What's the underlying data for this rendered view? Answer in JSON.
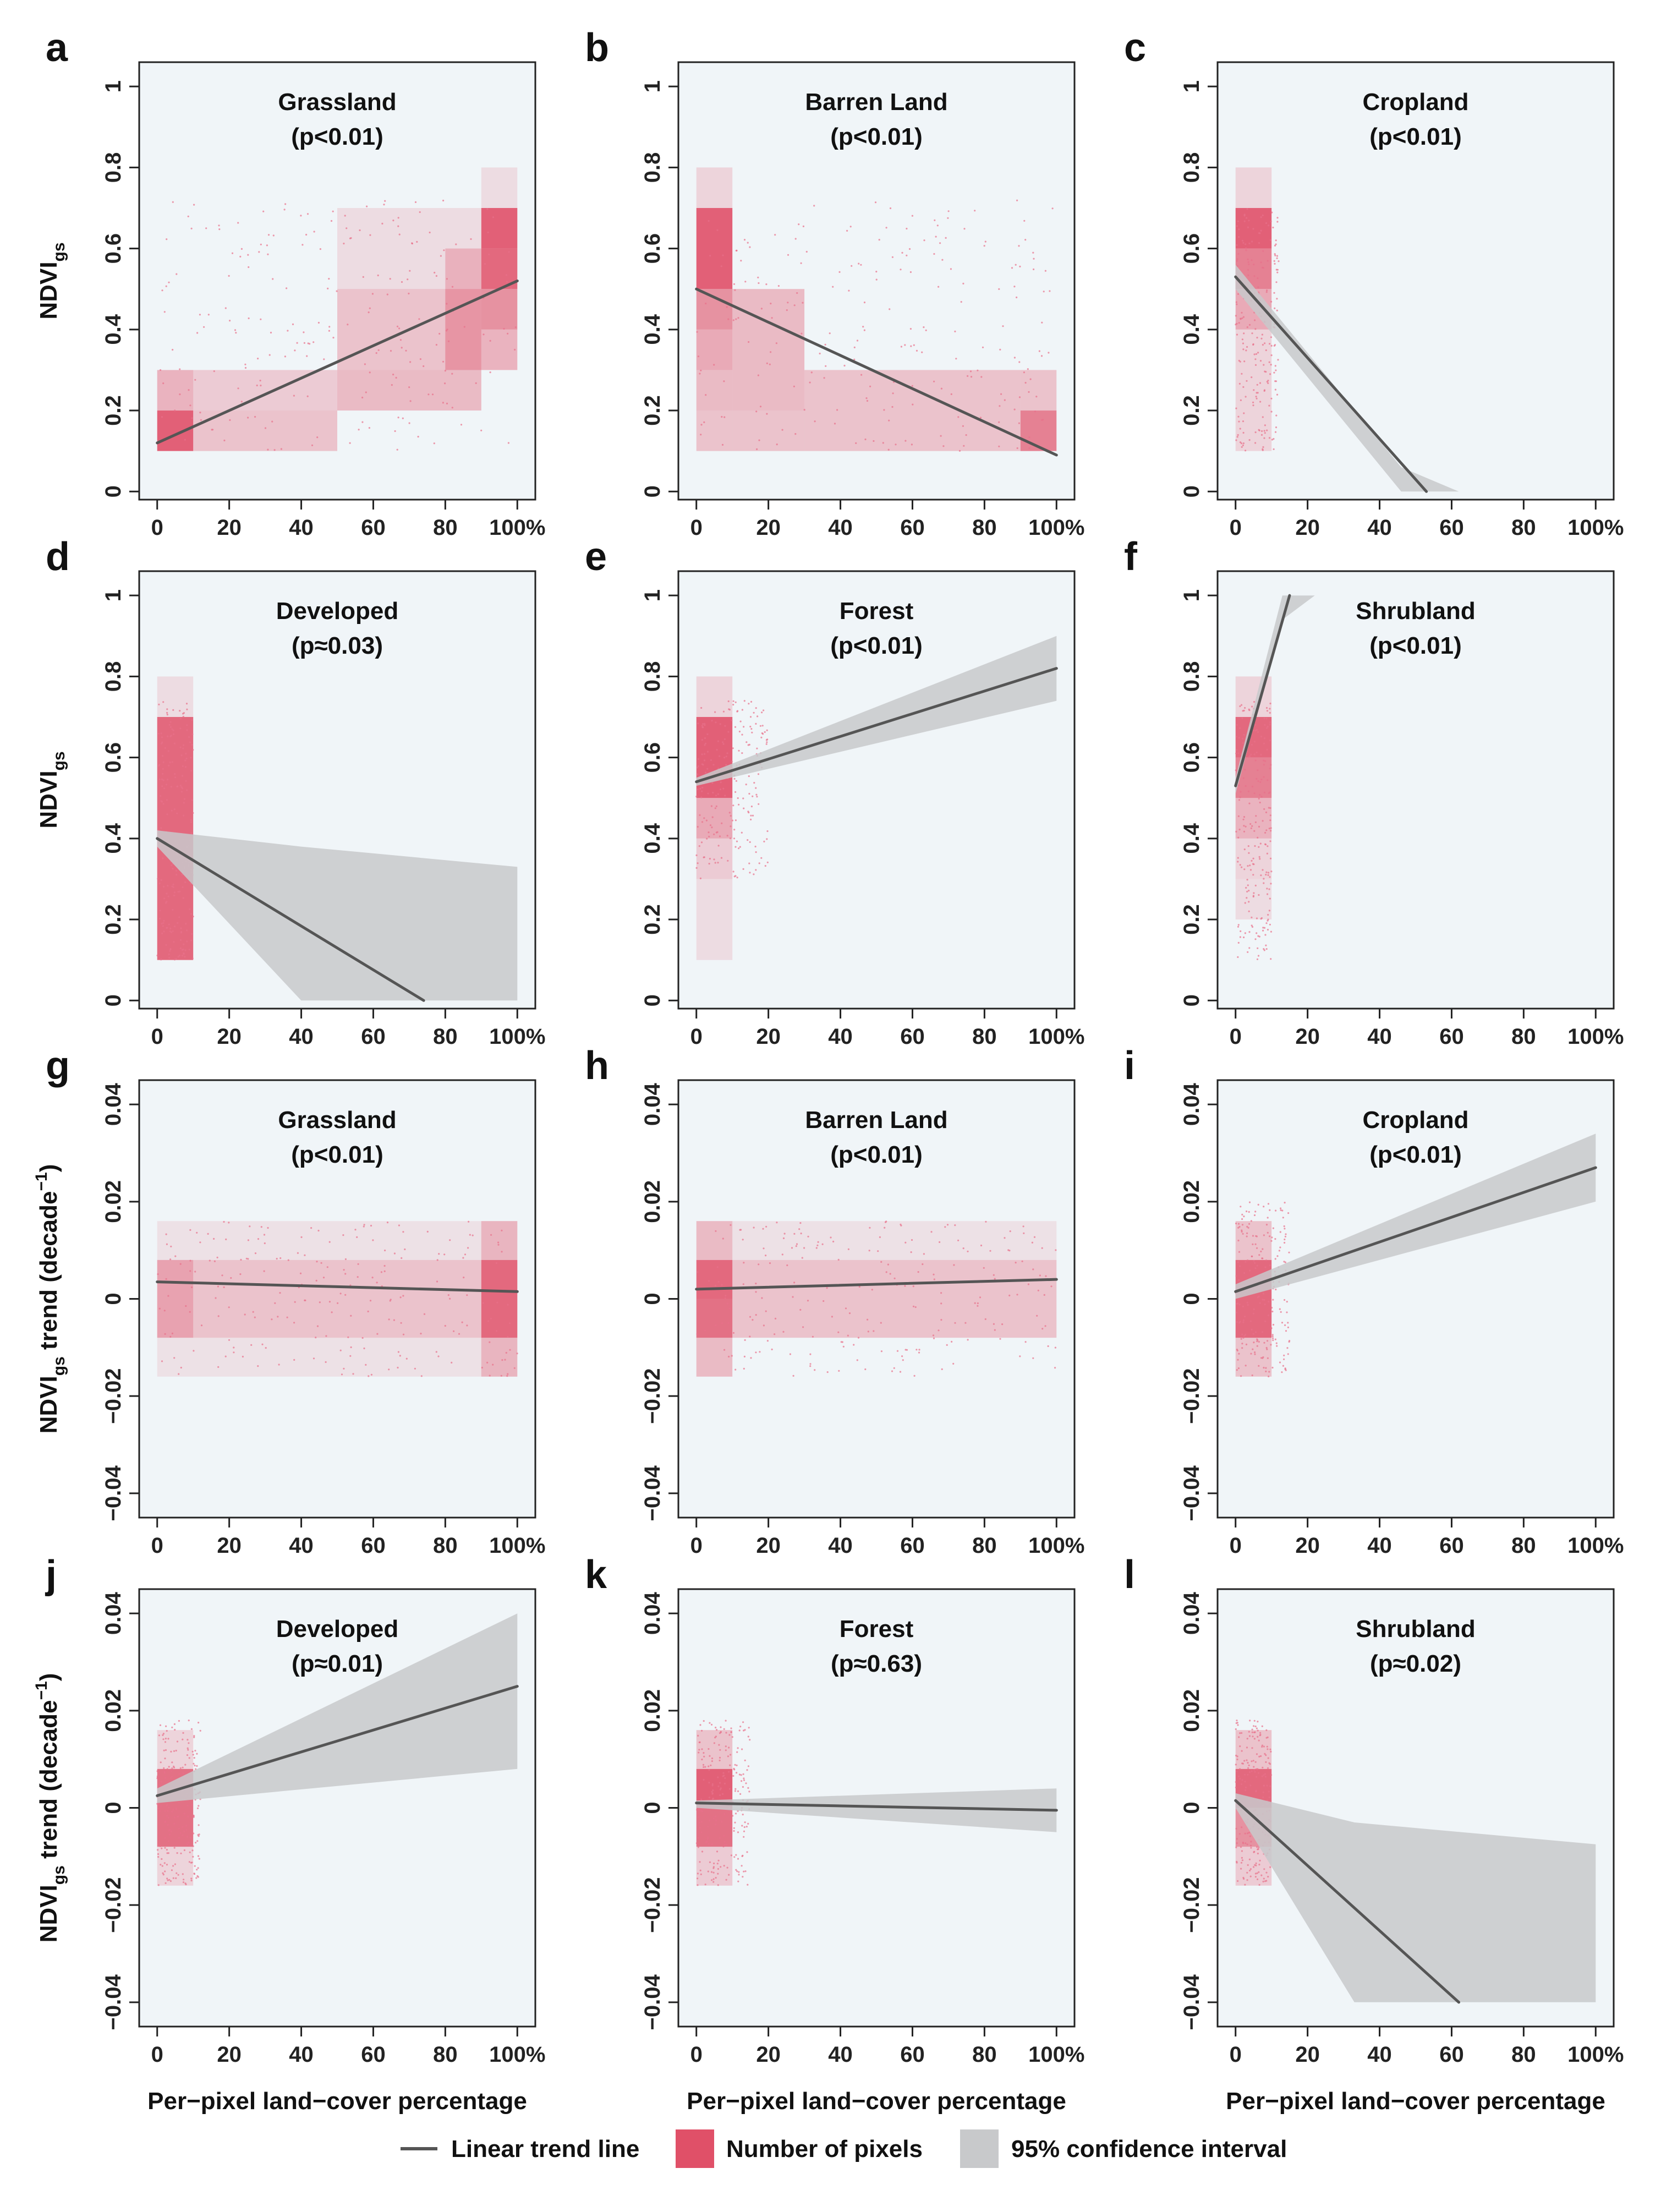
{
  "colors": {
    "panel_bg": "#f0f5f8",
    "density": "#e05068",
    "scatter": "#e8708a",
    "trend_line": "#555555",
    "ci_fill": "#c8c9cb",
    "axis": "#222222"
  },
  "x_axis": {
    "ticks": [
      0,
      20,
      40,
      60,
      80,
      100
    ],
    "tick_labels": [
      "0",
      "20",
      "40",
      "60",
      "80",
      "100%"
    ],
    "label": "Per−pixel land−cover percentage"
  },
  "legend": {
    "trend_label": "Linear trend line",
    "pixels_label": "Number of pixels",
    "ci_label": "95% confidence interval"
  },
  "chart_data": [
    {
      "id": "a",
      "type": "scatter",
      "title": "Grassland",
      "pvalue": "(p<0.01)",
      "metric": "ndvi",
      "ylabel": "NDVI",
      "ylabel_sub": "gs",
      "yticks": [
        0,
        0.2,
        0.4,
        0.6,
        0.8,
        1
      ],
      "ytick_labels": [
        "0",
        "0.2",
        "0.4",
        "0.6",
        "0.8",
        "1"
      ],
      "ylim": [
        -0.02,
        1.06
      ],
      "xlim": [
        -5,
        105
      ],
      "trend": {
        "x": [
          0,
          100
        ],
        "y": [
          0.12,
          0.52
        ]
      },
      "ci": null,
      "scatter_region": {
        "x": [
          0,
          100
        ],
        "y": [
          0.1,
          0.72
        ]
      },
      "density": [
        [
          0,
          10,
          0.1,
          0.2,
          0.9
        ],
        [
          0,
          10,
          0.2,
          0.3,
          0.4
        ],
        [
          10,
          50,
          0.1,
          0.2,
          0.3
        ],
        [
          10,
          50,
          0.2,
          0.3,
          0.25
        ],
        [
          50,
          90,
          0.2,
          0.3,
          0.35
        ],
        [
          50,
          90,
          0.3,
          0.5,
          0.3
        ],
        [
          50,
          90,
          0.5,
          0.7,
          0.15
        ],
        [
          90,
          100,
          0.6,
          0.7,
          0.9
        ],
        [
          90,
          100,
          0.5,
          0.6,
          0.85
        ],
        [
          90,
          100,
          0.4,
          0.5,
          0.6
        ],
        [
          90,
          100,
          0.3,
          0.4,
          0.4
        ],
        [
          90,
          100,
          0.7,
          0.8,
          0.15
        ],
        [
          80,
          90,
          0.3,
          0.5,
          0.4
        ],
        [
          80,
          90,
          0.5,
          0.6,
          0.3
        ]
      ]
    },
    {
      "id": "b",
      "type": "scatter",
      "title": "Barren Land",
      "pvalue": "(p<0.01)",
      "metric": "ndvi",
      "ylabel": "",
      "ylabel_sub": "",
      "yticks": [
        0,
        0.2,
        0.4,
        0.6,
        0.8,
        1
      ],
      "ytick_labels": [
        "0",
        "0.2",
        "0.4",
        "0.6",
        "0.8",
        "1"
      ],
      "ylim": [
        -0.02,
        1.06
      ],
      "xlim": [
        -5,
        105
      ],
      "trend": {
        "x": [
          0,
          100
        ],
        "y": [
          0.5,
          0.09
        ]
      },
      "ci": null,
      "scatter_region": {
        "x": [
          0,
          100
        ],
        "y": [
          0.1,
          0.72
        ]
      },
      "density": [
        [
          0,
          10,
          0.5,
          0.7,
          0.9
        ],
        [
          0,
          10,
          0.4,
          0.5,
          0.6
        ],
        [
          0,
          10,
          0.3,
          0.4,
          0.45
        ],
        [
          0,
          10,
          0.2,
          0.3,
          0.35
        ],
        [
          0,
          10,
          0.1,
          0.2,
          0.3
        ],
        [
          0,
          10,
          0.7,
          0.8,
          0.2
        ],
        [
          10,
          30,
          0.2,
          0.5,
          0.35
        ],
        [
          10,
          30,
          0.1,
          0.2,
          0.3
        ],
        [
          30,
          90,
          0.1,
          0.3,
          0.3
        ],
        [
          90,
          100,
          0.1,
          0.2,
          0.7
        ],
        [
          90,
          100,
          0.2,
          0.3,
          0.3
        ]
      ]
    },
    {
      "id": "c",
      "type": "scatter",
      "title": "Cropland",
      "pvalue": "(p<0.01)",
      "metric": "ndvi",
      "ylabel": "",
      "ylabel_sub": "",
      "yticks": [
        0,
        0.2,
        0.4,
        0.6,
        0.8,
        1
      ],
      "ytick_labels": [
        "0",
        "0.2",
        "0.4",
        "0.6",
        "0.8",
        "1"
      ],
      "ylim": [
        -0.02,
        1.06
      ],
      "xlim": [
        -5,
        105
      ],
      "trend": {
        "x": [
          0,
          53
        ],
        "y": [
          0.53,
          0
        ]
      },
      "ci": {
        "x": [
          0,
          46,
          62
        ],
        "lower": [
          0.5,
          0.0,
          0.0
        ],
        "upper": [
          0.56,
          0.06,
          0.0
        ]
      },
      "scatter_region": {
        "x": [
          0,
          12
        ],
        "y": [
          0.1,
          0.7
        ]
      },
      "density": [
        [
          0,
          10,
          0.6,
          0.7,
          0.9
        ],
        [
          0,
          10,
          0.5,
          0.6,
          0.7
        ],
        [
          0,
          10,
          0.4,
          0.5,
          0.45
        ],
        [
          0,
          10,
          0.7,
          0.8,
          0.2
        ],
        [
          0,
          10,
          0.1,
          0.4,
          0.2
        ]
      ]
    },
    {
      "id": "d",
      "type": "scatter",
      "title": "Developed",
      "pvalue": "(p≈0.03)",
      "metric": "ndvi",
      "ylabel": "NDVI",
      "ylabel_sub": "gs",
      "yticks": [
        0,
        0.2,
        0.4,
        0.6,
        0.8,
        1
      ],
      "ytick_labels": [
        "0",
        "0.2",
        "0.4",
        "0.6",
        "0.8",
        "1"
      ],
      "ylim": [
        -0.02,
        1.06
      ],
      "xlim": [
        -5,
        105
      ],
      "trend": {
        "x": [
          0,
          74
        ],
        "y": [
          0.4,
          0
        ]
      },
      "ci": {
        "x": [
          0,
          40,
          100
        ],
        "lower": [
          0.38,
          0.0,
          0.0
        ],
        "upper": [
          0.42,
          0.38,
          0.33
        ]
      },
      "scatter_region": {
        "x": [
          0,
          10
        ],
        "y": [
          0.1,
          0.74
        ]
      },
      "density": [
        [
          0,
          10,
          0.1,
          0.7,
          0.85
        ],
        [
          0,
          10,
          0.7,
          0.8,
          0.15
        ]
      ]
    },
    {
      "id": "e",
      "type": "scatter",
      "title": "Forest",
      "pvalue": "(p<0.01)",
      "metric": "ndvi",
      "ylabel": "",
      "ylabel_sub": "",
      "yticks": [
        0,
        0.2,
        0.4,
        0.6,
        0.8,
        1
      ],
      "ytick_labels": [
        "0",
        "0.2",
        "0.4",
        "0.6",
        "0.8",
        "1"
      ],
      "ylim": [
        -0.02,
        1.06
      ],
      "xlim": [
        -5,
        105
      ],
      "trend": {
        "x": [
          0,
          100
        ],
        "y": [
          0.54,
          0.82
        ]
      },
      "ci": {
        "x": [
          0,
          100
        ],
        "lower": [
          0.53,
          0.74
        ],
        "upper": [
          0.55,
          0.9
        ]
      },
      "scatter_region": {
        "x": [
          0,
          20
        ],
        "y": [
          0.3,
          0.74
        ]
      },
      "density": [
        [
          0,
          10,
          0.5,
          0.7,
          0.9
        ],
        [
          0,
          10,
          0.4,
          0.5,
          0.45
        ],
        [
          0,
          10,
          0.3,
          0.4,
          0.25
        ],
        [
          0,
          10,
          0.7,
          0.8,
          0.2
        ],
        [
          0,
          10,
          0.1,
          0.3,
          0.15
        ]
      ]
    },
    {
      "id": "f",
      "type": "scatter",
      "title": "Shrubland",
      "pvalue": "(p<0.01)",
      "metric": "ndvi",
      "ylabel": "",
      "ylabel_sub": "",
      "yticks": [
        0,
        0.2,
        0.4,
        0.6,
        0.8,
        1
      ],
      "ytick_labels": [
        "0",
        "0.2",
        "0.4",
        "0.6",
        "0.8",
        "1"
      ],
      "ylim": [
        -0.02,
        1.06
      ],
      "xlim": [
        -5,
        105
      ],
      "trend": {
        "x": [
          0,
          15
        ],
        "y": [
          0.53,
          1.0
        ]
      },
      "ci": {
        "x": [
          0,
          13,
          22
        ],
        "lower": [
          0.51,
          0.94,
          1.0
        ],
        "upper": [
          0.55,
          1.0,
          1.0
        ]
      },
      "scatter_region": {
        "x": [
          0,
          10
        ],
        "y": [
          0.1,
          0.74
        ]
      },
      "density": [
        [
          0,
          10,
          0.6,
          0.7,
          0.85
        ],
        [
          0,
          10,
          0.5,
          0.6,
          0.7
        ],
        [
          0,
          10,
          0.4,
          0.5,
          0.4
        ],
        [
          0,
          10,
          0.3,
          0.4,
          0.2
        ],
        [
          0,
          10,
          0.7,
          0.8,
          0.2
        ],
        [
          0,
          10,
          0.2,
          0.3,
          0.15
        ]
      ]
    },
    {
      "id": "g",
      "type": "scatter",
      "title": "Grassland",
      "pvalue": "(p<0.01)",
      "metric": "trend",
      "ylabel": "NDVI",
      "ylabel_sub": "gs",
      "ylabel_tail": " trend (decade",
      "ylabel_sup": "−1",
      "ylabel_end": ")",
      "yticks": [
        -0.04,
        -0.02,
        0,
        0.02,
        0.04
      ],
      "ytick_labels": [
        "−0.04",
        "−0.02",
        "0",
        "0.02",
        "0.04"
      ],
      "ylim": [
        -0.045,
        0.045
      ],
      "xlim": [
        -5,
        105
      ],
      "trend": {
        "x": [
          0,
          100
        ],
        "y": [
          0.0035,
          0.0015
        ]
      },
      "ci": null,
      "scatter_region": {
        "x": [
          0,
          100
        ],
        "y": [
          -0.016,
          0.016
        ]
      },
      "density": [
        [
          0,
          10,
          -0.008,
          0.008,
          0.5
        ],
        [
          10,
          90,
          -0.008,
          0.008,
          0.3
        ],
        [
          90,
          100,
          0.0,
          0.008,
          0.85
        ],
        [
          90,
          100,
          -0.008,
          0.0,
          0.85
        ],
        [
          90,
          100,
          0.008,
          0.016,
          0.3
        ],
        [
          90,
          100,
          -0.016,
          -0.008,
          0.3
        ],
        [
          0,
          100,
          0.008,
          0.016,
          0.12
        ],
        [
          0,
          100,
          -0.016,
          -0.008,
          0.12
        ]
      ]
    },
    {
      "id": "h",
      "type": "scatter",
      "title": "Barren Land",
      "pvalue": "(p<0.01)",
      "metric": "trend",
      "ylabel": "",
      "ylabel_sub": "",
      "yticks": [
        -0.04,
        -0.02,
        0,
        0.02,
        0.04
      ],
      "ytick_labels": [
        "−0.04",
        "−0.02",
        "0",
        "0.02",
        "0.04"
      ],
      "ylim": [
        -0.045,
        0.045
      ],
      "xlim": [
        -5,
        105
      ],
      "trend": {
        "x": [
          0,
          100
        ],
        "y": [
          0.002,
          0.004
        ]
      },
      "ci": null,
      "scatter_region": {
        "x": [
          0,
          100
        ],
        "y": [
          -0.016,
          0.016
        ]
      },
      "density": [
        [
          0,
          10,
          0.0,
          0.008,
          0.85
        ],
        [
          0,
          10,
          -0.008,
          0.0,
          0.8
        ],
        [
          0,
          10,
          0.008,
          0.016,
          0.35
        ],
        [
          0,
          10,
          -0.016,
          -0.008,
          0.35
        ],
        [
          10,
          100,
          -0.008,
          0.008,
          0.3
        ],
        [
          10,
          100,
          0.008,
          0.016,
          0.12
        ]
      ]
    },
    {
      "id": "i",
      "type": "scatter",
      "title": "Cropland",
      "pvalue": "(p<0.01)",
      "metric": "trend",
      "ylabel": "",
      "ylabel_sub": "",
      "yticks": [
        -0.04,
        -0.02,
        0,
        0.02,
        0.04
      ],
      "ytick_labels": [
        "−0.04",
        "−0.02",
        "0",
        "0.02",
        "0.04"
      ],
      "ylim": [
        -0.045,
        0.045
      ],
      "xlim": [
        -5,
        105
      ],
      "trend": {
        "x": [
          0,
          100
        ],
        "y": [
          0.0015,
          0.027
        ]
      },
      "ci": {
        "x": [
          0,
          100
        ],
        "lower": [
          0.0,
          0.02
        ],
        "upper": [
          0.003,
          0.034
        ]
      },
      "scatter_region": {
        "x": [
          0,
          15
        ],
        "y": [
          -0.016,
          0.02
        ]
      },
      "density": [
        [
          0,
          10,
          -0.008,
          0.008,
          0.85
        ],
        [
          0,
          10,
          0.008,
          0.016,
          0.3
        ],
        [
          0,
          10,
          -0.016,
          -0.008,
          0.3
        ]
      ]
    },
    {
      "id": "j",
      "type": "scatter",
      "title": "Developed",
      "pvalue": "(p≈0.01)",
      "metric": "trend",
      "ylabel": "NDVI",
      "ylabel_sub": "gs",
      "ylabel_tail": " trend (decade",
      "ylabel_sup": "−1",
      "ylabel_end": ")",
      "yticks": [
        -0.04,
        -0.02,
        0,
        0.02,
        0.04
      ],
      "ytick_labels": [
        "−0.04",
        "−0.02",
        "0",
        "0.02",
        "0.04"
      ],
      "ylim": [
        -0.045,
        0.045
      ],
      "xlim": [
        -5,
        105
      ],
      "trend": {
        "x": [
          0,
          100
        ],
        "y": [
          0.0025,
          0.025
        ]
      },
      "ci": {
        "x": [
          0,
          100
        ],
        "lower": [
          0.001,
          0.008
        ],
        "upper": [
          0.004,
          0.04
        ]
      },
      "scatter_region": {
        "x": [
          0,
          12
        ],
        "y": [
          -0.016,
          0.018
        ]
      },
      "density": [
        [
          0,
          10,
          -0.008,
          0.008,
          0.8
        ],
        [
          0,
          10,
          0.008,
          0.016,
          0.2
        ],
        [
          0,
          10,
          -0.016,
          -0.008,
          0.2
        ]
      ]
    },
    {
      "id": "k",
      "type": "scatter",
      "title": "Forest",
      "pvalue": "(p≈0.63)",
      "metric": "trend",
      "ylabel": "",
      "ylabel_sub": "",
      "yticks": [
        -0.04,
        -0.02,
        0,
        0.02,
        0.04
      ],
      "ytick_labels": [
        "−0.04",
        "−0.02",
        "0",
        "0.02",
        "0.04"
      ],
      "ylim": [
        -0.045,
        0.045
      ],
      "xlim": [
        -5,
        105
      ],
      "trend": {
        "x": [
          0,
          100
        ],
        "y": [
          0.001,
          -0.0005
        ]
      },
      "ci": {
        "x": [
          0,
          100
        ],
        "lower": [
          0.0,
          -0.005
        ],
        "upper": [
          0.0015,
          0.004
        ]
      },
      "scatter_region": {
        "x": [
          0,
          15
        ],
        "y": [
          -0.016,
          0.018
        ]
      },
      "density": [
        [
          0,
          10,
          0.0,
          0.008,
          0.9
        ],
        [
          0,
          10,
          -0.008,
          0.0,
          0.8
        ],
        [
          0,
          10,
          0.008,
          0.016,
          0.3
        ],
        [
          0,
          10,
          -0.016,
          -0.008,
          0.25
        ]
      ]
    },
    {
      "id": "l",
      "type": "scatter",
      "title": "Shrubland",
      "pvalue": "(p≈0.02)",
      "metric": "trend",
      "ylabel": "",
      "ylabel_sub": "",
      "yticks": [
        -0.04,
        -0.02,
        0,
        0.02,
        0.04
      ],
      "ytick_labels": [
        "−0.04",
        "−0.02",
        "0",
        "0.02",
        "0.04"
      ],
      "ylim": [
        -0.045,
        0.045
      ],
      "xlim": [
        -5,
        105
      ],
      "trend": {
        "x": [
          0,
          62
        ],
        "y": [
          0.0015,
          -0.04
        ]
      },
      "ci": {
        "x": [
          0,
          33,
          100
        ],
        "lower": [
          0.0,
          -0.04,
          -0.04
        ],
        "upper": [
          0.003,
          -0.003,
          -0.0075
        ]
      },
      "scatter_region": {
        "x": [
          0,
          10
        ],
        "y": [
          -0.016,
          0.018
        ]
      },
      "density": [
        [
          0,
          10,
          0.0,
          0.008,
          0.85
        ],
        [
          0,
          10,
          -0.008,
          0.0,
          0.6
        ],
        [
          0,
          10,
          0.008,
          0.016,
          0.3
        ],
        [
          0,
          10,
          -0.016,
          -0.008,
          0.25
        ]
      ]
    }
  ]
}
